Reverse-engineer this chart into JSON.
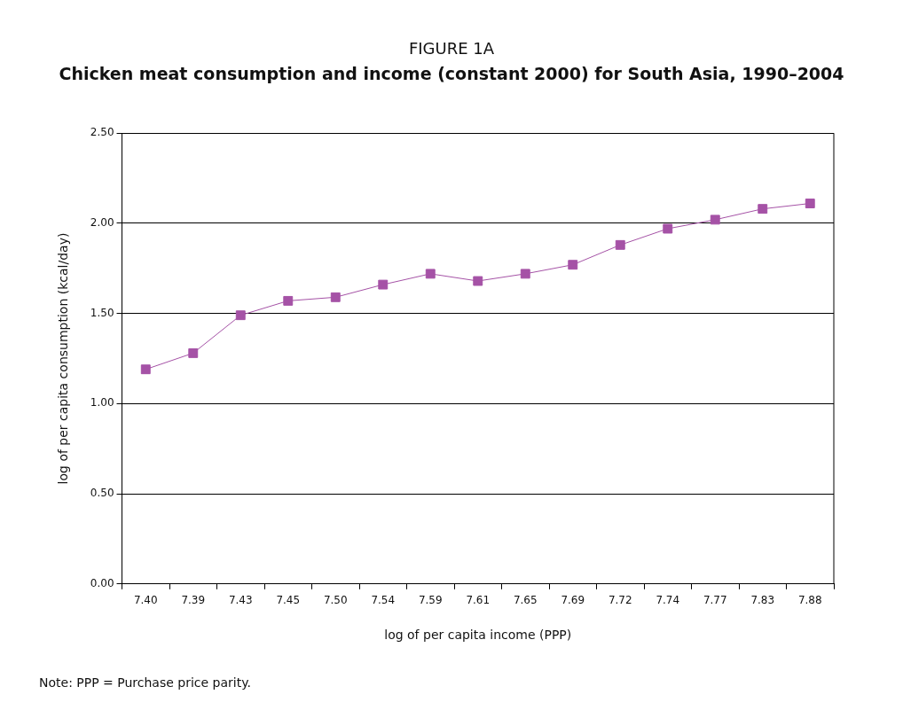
{
  "chart_data": {
    "type": "line",
    "title": "FIGURE 1A",
    "subtitle": "Chicken meat consumption and income (constant 2000) for South Asia, 1990–2004",
    "xlabel": "log of per capita income (PPP)",
    "ylabel": "log of per capita consumption (kcal/day)",
    "categories": [
      "7.40",
      "7.39",
      "7.43",
      "7.45",
      "7.50",
      "7.54",
      "7.59",
      "7.61",
      "7.65",
      "7.69",
      "7.72",
      "7.74",
      "7.77",
      "7.83",
      "7.88"
    ],
    "series": [
      {
        "color": "#a552a6",
        "values": [
          1.19,
          1.28,
          1.49,
          1.57,
          1.59,
          1.66,
          1.72,
          1.68,
          1.72,
          1.77,
          1.88,
          1.97,
          2.02,
          2.08,
          2.11
        ]
      }
    ],
    "ylim": [
      0,
      2.5
    ],
    "yticks": [
      {
        "value": 0,
        "label": "0.00"
      },
      {
        "value": 0.5,
        "label": "0.50"
      },
      {
        "value": 1,
        "label": "1.00"
      },
      {
        "value": 1.5,
        "label": "1.50"
      },
      {
        "value": 2,
        "label": "2.00"
      },
      {
        "value": 2.5,
        "label": "2.50"
      }
    ],
    "grid": "y",
    "legend": false,
    "marker": "square",
    "line_style": "solid",
    "annotations": [
      "Note: PPP = Purchase price parity."
    ]
  }
}
